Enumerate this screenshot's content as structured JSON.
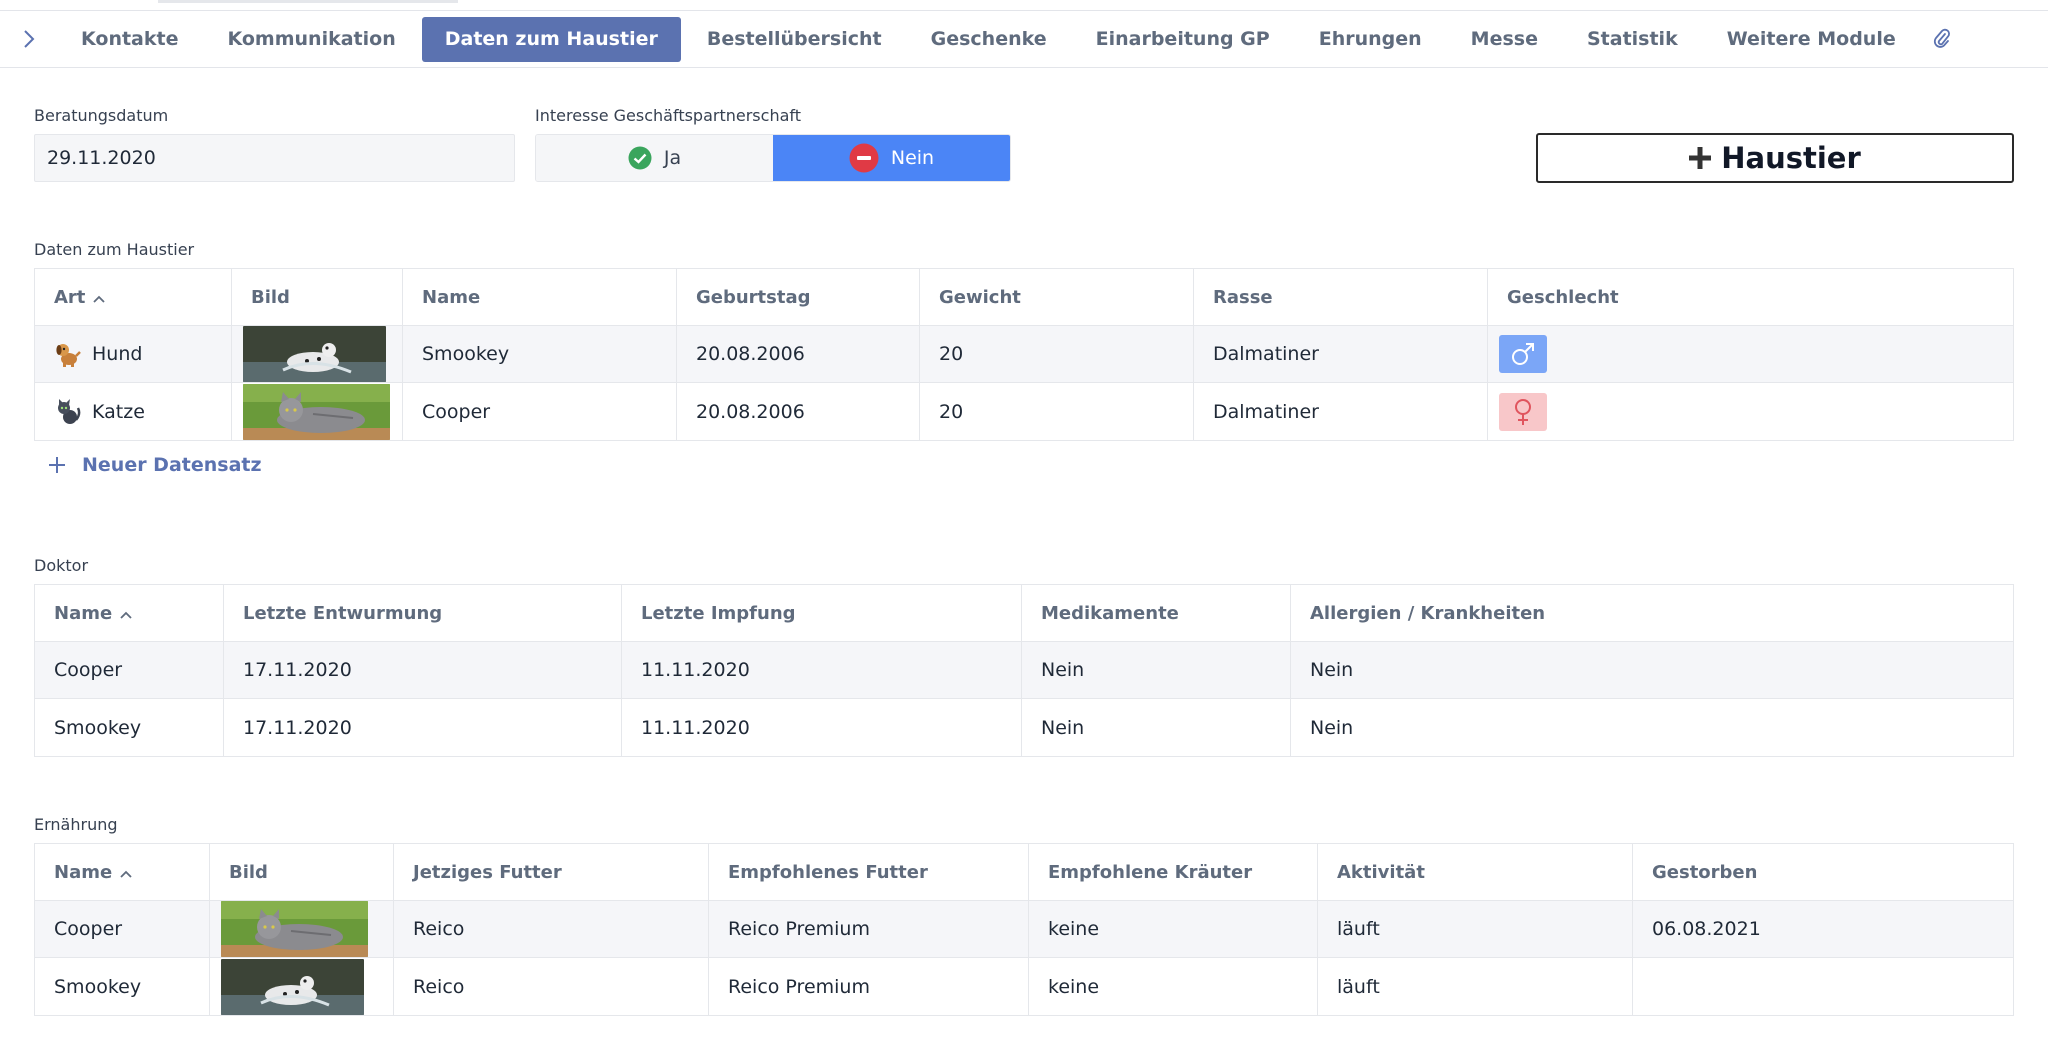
{
  "tabs": {
    "items": [
      "Kontakte",
      "Kommunikation",
      "Daten zum Haustier",
      "Bestellübersicht",
      "Geschenke",
      "Einarbeitung GP",
      "Ehrungen",
      "Messe",
      "Statistik",
      "Weitere Module"
    ],
    "active_index": 2,
    "active_color": "#5b72b0"
  },
  "form": {
    "date_label": "Beratungsdatum",
    "date_value": "29.11.2020",
    "interest_label": "Interesse Geschäftspartnerschaft",
    "yes_label": "Ja",
    "no_label": "Nein",
    "selected": "Nein",
    "add_pet_label": "Haustier",
    "accent": "#4b85f6"
  },
  "pets": {
    "section_label": "Daten zum Haustier",
    "columns": [
      "Art",
      "Bild",
      "Name",
      "Geburtstag",
      "Gewicht",
      "Rasse",
      "Geschlecht"
    ],
    "rows": [
      {
        "art": "Hund",
        "art_icon": "dog-icon",
        "image": "dalmatian-photo",
        "name": "Smookey",
        "geburtstag": "20.08.2006",
        "gewicht": "20",
        "rasse": "Dalmatiner",
        "geschlecht": "male-symbol-icon"
      },
      {
        "art": "Katze",
        "art_icon": "cat-icon",
        "image": "cat-photo",
        "name": "Cooper",
        "geburtstag": "20.08.2006",
        "gewicht": "20",
        "rasse": "Dalmatiner",
        "geschlecht": "female-symbol-icon"
      }
    ],
    "new_record_label": "Neuer Datensatz"
  },
  "doctor": {
    "section_label": "Doktor",
    "columns": [
      "Name",
      "Letzte Entwurmung",
      "Letzte Impfung",
      "Medikamente",
      "Allergien / Krankheiten"
    ],
    "rows": [
      {
        "name": "Cooper",
        "entwurmung": "17.11.2020",
        "impfung": "11.11.2020",
        "medikamente": "Nein",
        "allergien": "Nein"
      },
      {
        "name": "Smookey",
        "entwurmung": "17.11.2020",
        "impfung": "11.11.2020",
        "medikamente": "Nein",
        "allergien": "Nein"
      }
    ]
  },
  "nutrition": {
    "section_label": "Ernährung",
    "columns": [
      "Name",
      "Bild",
      "Jetziges Futter",
      "Empfohlenes Futter",
      "Empfohlene Kräuter",
      "Aktivität",
      "Gestorben"
    ],
    "rows": [
      {
        "name": "Cooper",
        "image": "cat-photo",
        "jetziges": "Reico",
        "empfohlen": "Reico Premium",
        "kraeuter": "keine",
        "aktivitaet": "läuft",
        "gestorben": "06.08.2021"
      },
      {
        "name": "Smookey",
        "image": "dalmatian-photo",
        "jetziges": "Reico",
        "empfohlen": "Reico Premium",
        "kraeuter": "keine",
        "aktivitaet": "läuft",
        "gestorben": ""
      }
    ]
  }
}
